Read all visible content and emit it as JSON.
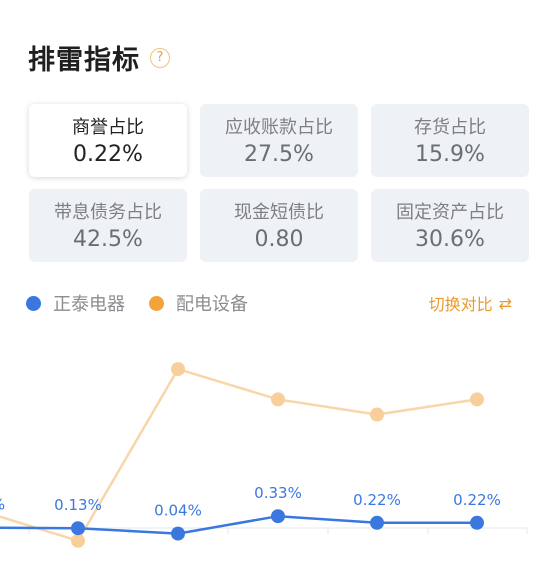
{
  "header": {
    "title": "排雷指标",
    "help_icon": "question-circle-icon"
  },
  "cards": [
    {
      "label": "商誉占比",
      "value": "0.22%",
      "active": true
    },
    {
      "label": "应收账款占比",
      "value": "27.5%",
      "active": false
    },
    {
      "label": "存货占比",
      "value": "15.9%",
      "active": false
    },
    {
      "label": "带息债务占比",
      "value": "42.5%",
      "active": false
    },
    {
      "label": "现金短债比",
      "value": "0.80",
      "active": false
    },
    {
      "label": "固定资产占比",
      "value": "30.6%",
      "active": false
    }
  ],
  "legend": [
    {
      "name": "正泰电器",
      "color": "#3a78e0"
    },
    {
      "name": "配电设备",
      "color": "#f6a23b"
    }
  ],
  "switch": {
    "label": "切换对比",
    "icon": "switch-compare-icon"
  },
  "colors": {
    "blue": "#3a78e0",
    "orange_line": "#f8d6aa",
    "orange_point": "#f8cf9b"
  },
  "chart_data": {
    "type": "line",
    "series": [
      {
        "name": "正泰电器",
        "values": [
          0.14,
          0.13,
          0.04,
          0.33,
          0.22,
          0.22
        ],
        "labels": [
          "%",
          "0.13%",
          "0.04%",
          "0.33%",
          "0.22%",
          "0.22%"
        ]
      },
      {
        "name": "配电设备",
        "values": [
          1.5,
          1.2,
          2.9,
          2.6,
          2.45,
          2.6
        ]
      }
    ]
  }
}
